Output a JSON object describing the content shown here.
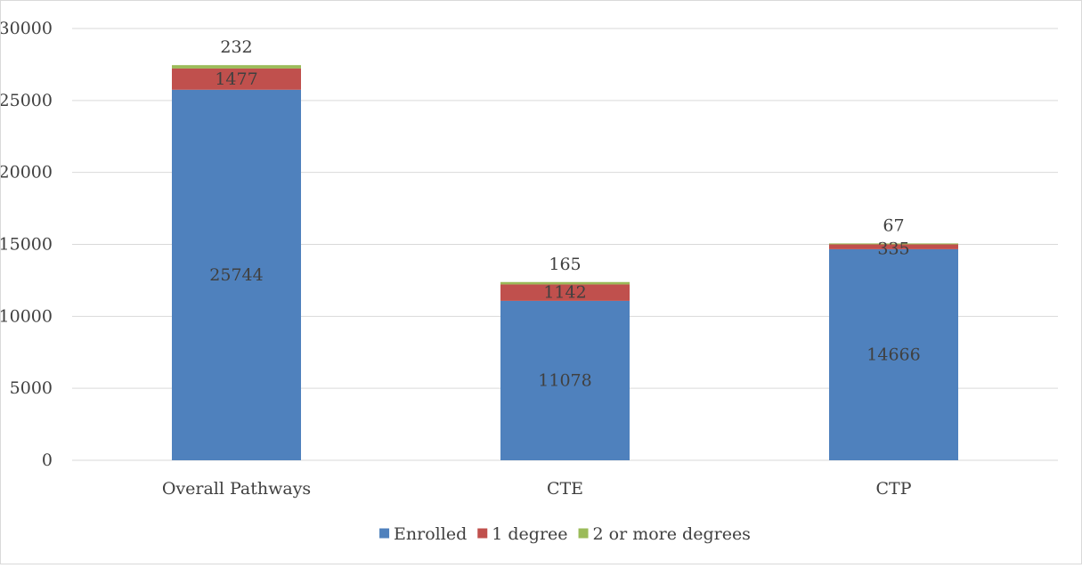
{
  "chart_data": {
    "type": "bar",
    "stacked": true,
    "categories": [
      "Overall Pathways",
      "CTE",
      "CTP"
    ],
    "series": [
      {
        "name": "Enrolled",
        "values": [
          25744,
          11078,
          14666
        ],
        "color": "#4f81bd",
        "label_color": "#404040"
      },
      {
        "name": "1 degree",
        "values": [
          1477,
          1142,
          335
        ],
        "color": "#c0504d",
        "label_color": "#404040"
      },
      {
        "name": "2 or more degrees",
        "values": [
          232,
          165,
          67
        ],
        "color": "#9bbb59",
        "label_color": "#404040"
      }
    ],
    "y_ticks": [
      "0",
      "5000",
      "10000",
      "15000",
      "20000",
      "25000",
      "30000"
    ],
    "ylim": [
      0,
      30000
    ],
    "grid": true,
    "legend": "bottom"
  }
}
